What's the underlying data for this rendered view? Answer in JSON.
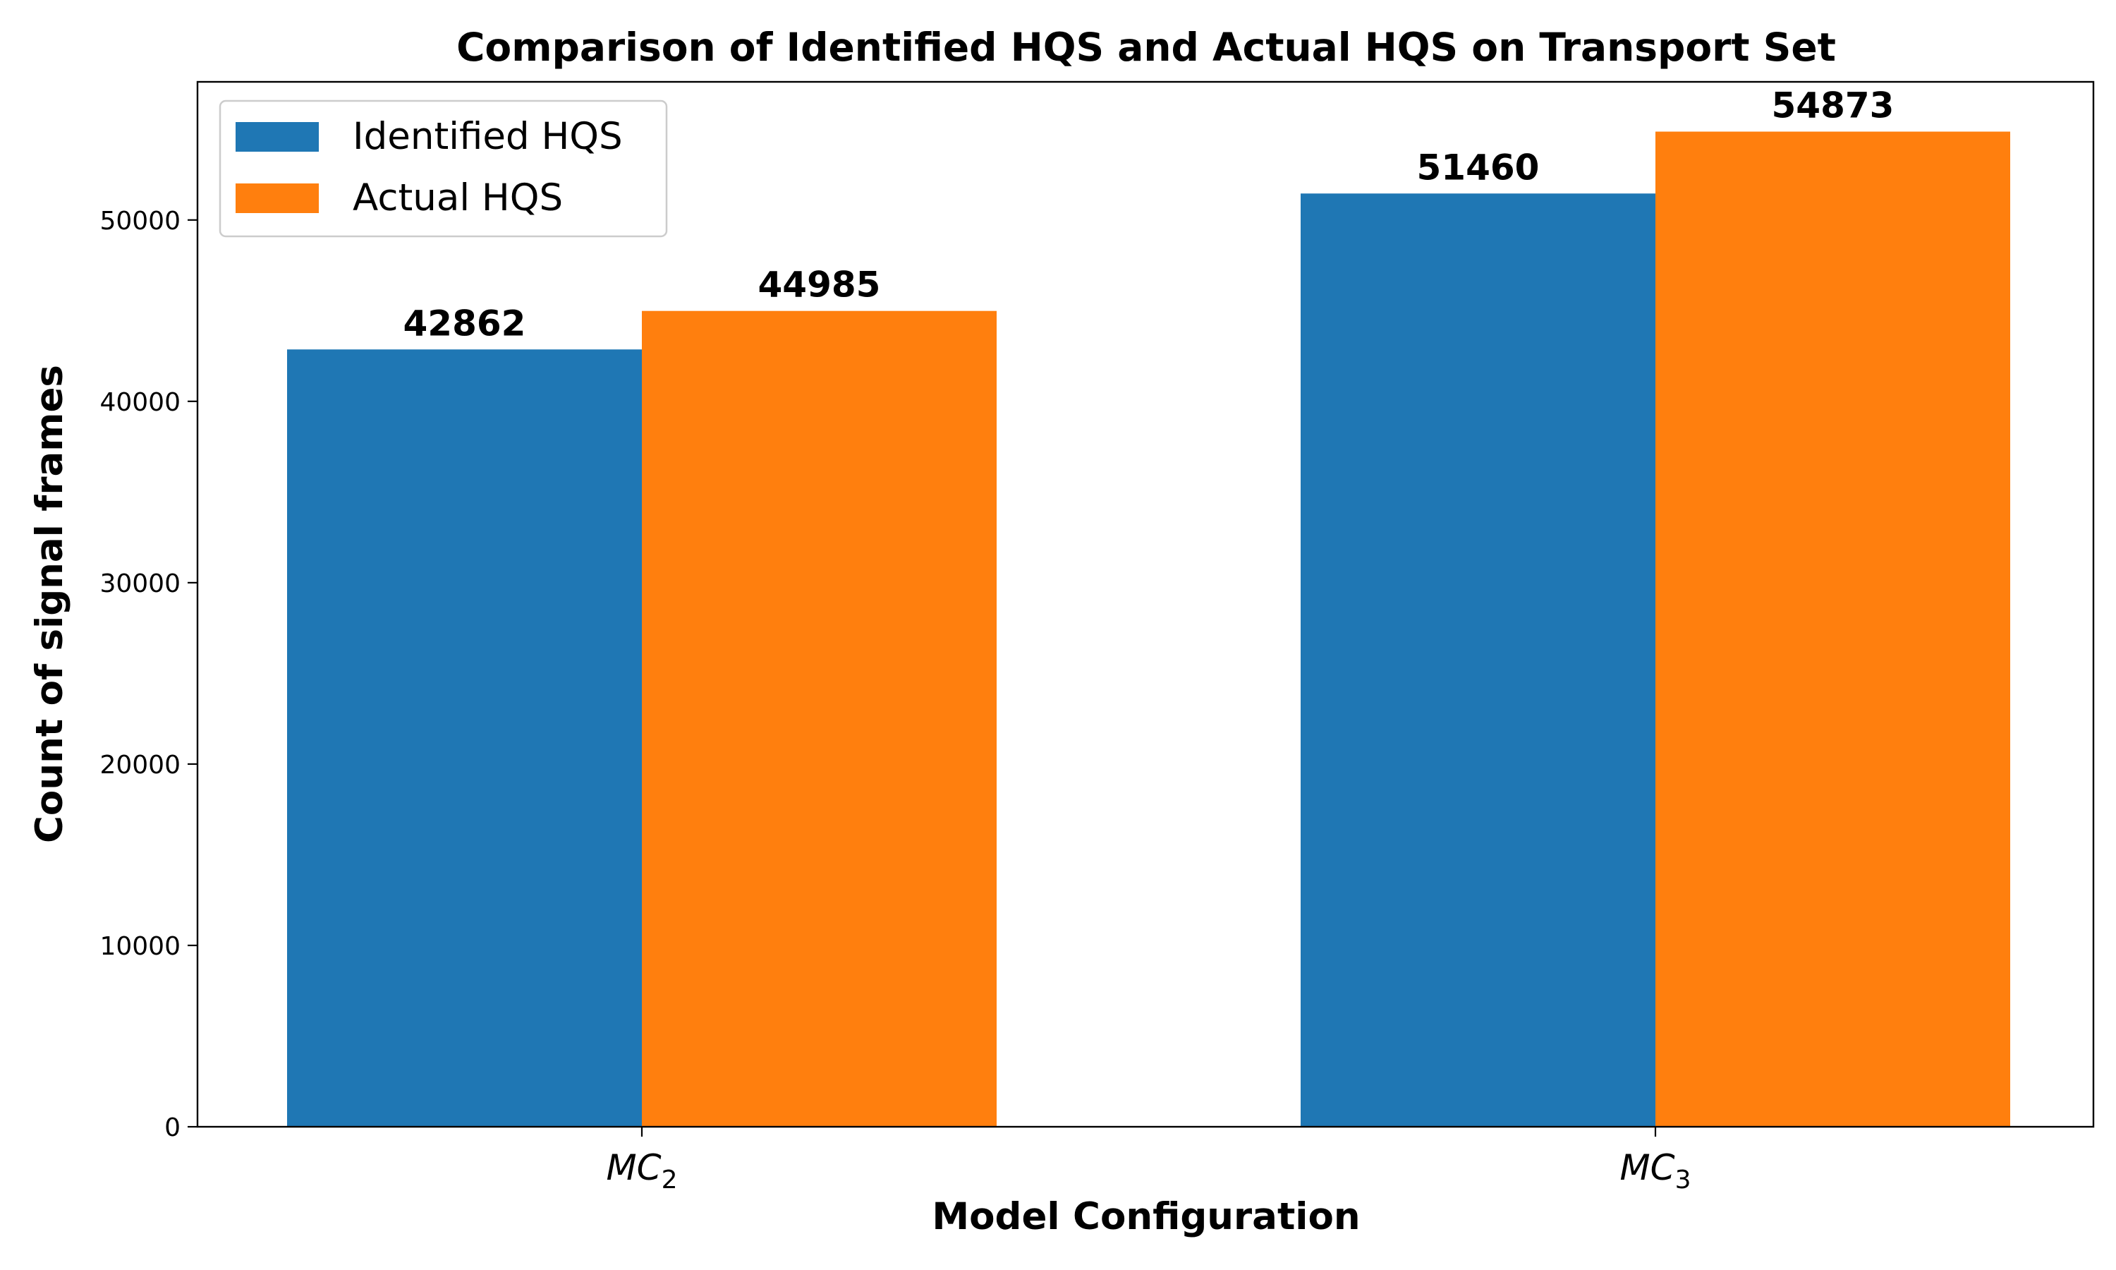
{
  "chart_data": {
    "type": "bar",
    "title": "Comparison of Identified HQS and Actual HQS on Transport Set",
    "xlabel": "Model Configuration",
    "ylabel": "Count of signal frames",
    "categories": [
      {
        "base": "MC",
        "sub": "2"
      },
      {
        "base": "MC",
        "sub": "3"
      }
    ],
    "series": [
      {
        "name": "Identified HQS",
        "color": "#1f77b4",
        "values": [
          42862,
          51460
        ]
      },
      {
        "name": "Actual HQS",
        "color": "#ff7f0e",
        "values": [
          44985,
          54873
        ]
      }
    ],
    "ylim": [
      0,
      57617
    ],
    "yticks": [
      0,
      10000,
      20000,
      30000,
      40000,
      50000
    ],
    "grid": false,
    "legend_position": "top-left"
  }
}
